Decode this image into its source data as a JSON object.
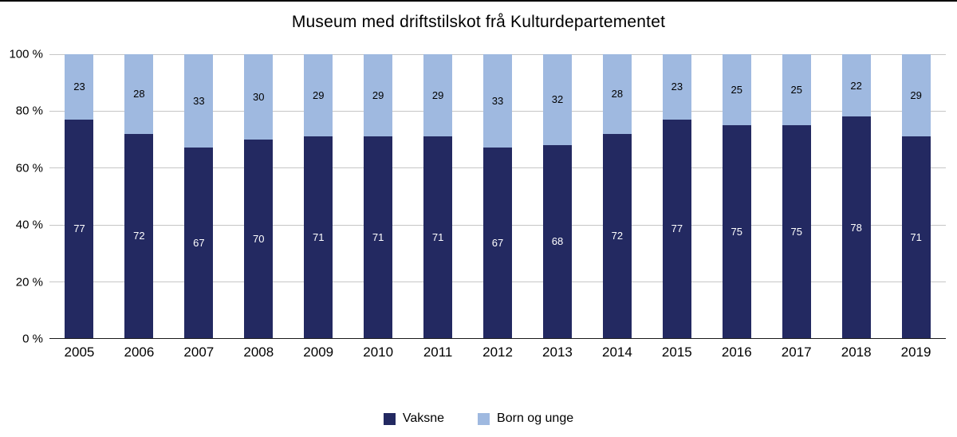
{
  "page": {
    "background": "#ffffff"
  },
  "chart_data": {
    "type": "bar",
    "stacked": true,
    "title": "Museum med driftstilskot frå Kulturdepartementet",
    "categories": [
      "2005",
      "2006",
      "2007",
      "2008",
      "2009",
      "2010",
      "2011",
      "2012",
      "2013",
      "2014",
      "2015",
      "2016",
      "2017",
      "2018",
      "2019"
    ],
    "series": [
      {
        "name": "Vaksne",
        "color": "#232961",
        "label_color": "#ffffff",
        "values": [
          77,
          72,
          67,
          70,
          71,
          71,
          71,
          67,
          68,
          72,
          77,
          75,
          75,
          78,
          71
        ]
      },
      {
        "name": "Born og unge",
        "color": "#9fb9e0",
        "label_color": "#000000",
        "values": [
          23,
          28,
          33,
          30,
          29,
          29,
          29,
          33,
          32,
          28,
          23,
          25,
          25,
          22,
          29
        ]
      }
    ],
    "y_ticks": [
      "0 %",
      "20 %",
      "40 %",
      "60 %",
      "80 %",
      "100 %"
    ],
    "ylim": [
      0,
      100
    ],
    "unit": "%",
    "grid": true,
    "legend_position": "bottom",
    "colors": {
      "grid": "#c6c6c6",
      "axis": "#1a1a1a"
    }
  }
}
